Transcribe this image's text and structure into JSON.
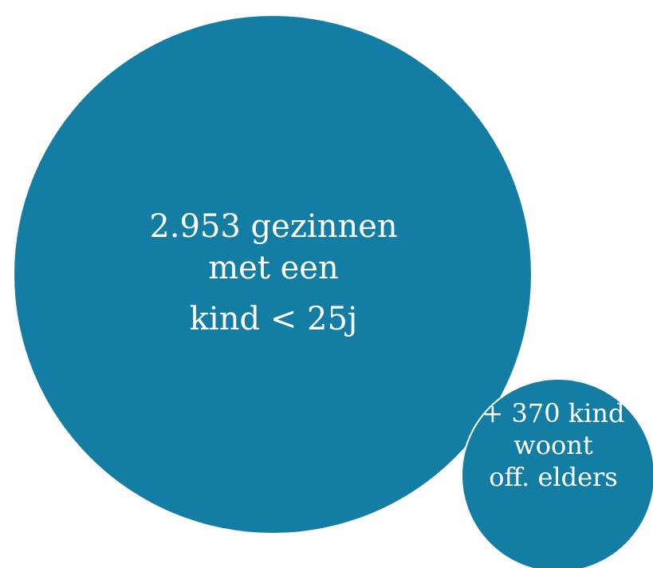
{
  "colors": {
    "bubble": "#147da3",
    "text": "#ffffff",
    "background": "#ffffff"
  },
  "main_bubble": {
    "lines": [
      "2.953 gezinnen",
      "met een",
      "kind < 25j"
    ]
  },
  "secondary_bubble": {
    "lines": [
      "+ 370 kind",
      "woont",
      "off. elders"
    ]
  }
}
